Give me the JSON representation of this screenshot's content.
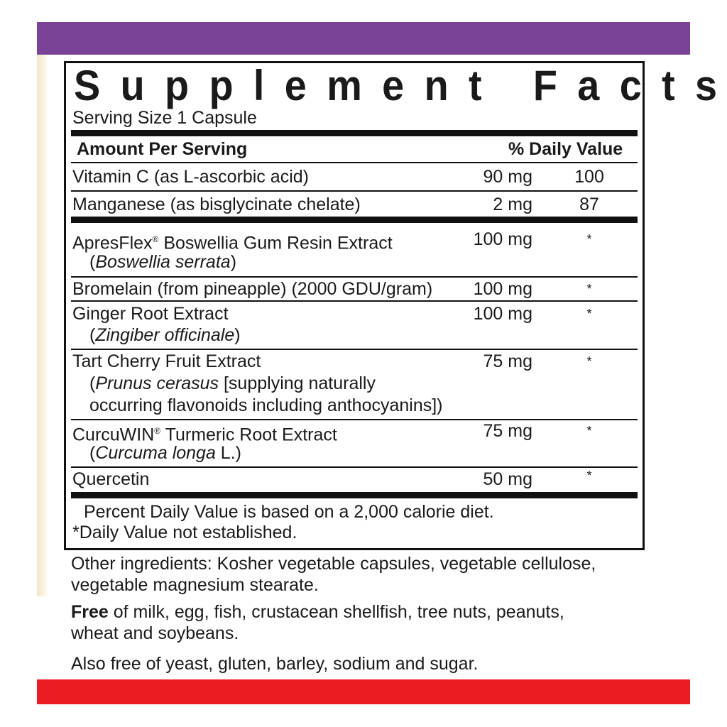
{
  "title": "Supplement Facts",
  "serving_size": "Serving Size 1 Capsule",
  "header": {
    "amount": "Amount Per Serving",
    "dv": "% Daily Value"
  },
  "rows": [
    {
      "name": "Vitamin C (as L-ascorbic acid)",
      "amount": "90 mg",
      "dv": "100"
    },
    {
      "name": "Manganese (as bisglycinate chelate)",
      "amount": "2 mg",
      "dv": "87"
    },
    {
      "name": "ApresFlex",
      "mark": "®",
      "name_rest": " Boswellia Gum Resin Extract",
      "sub_open": "(",
      "sub_italic": "Boswellia serrata",
      "sub_close": ")",
      "amount": "100 mg",
      "dv": "*"
    },
    {
      "name": "Bromelain (from pineapple) (2000 GDU/gram)",
      "amount": "100 mg",
      "dv": "*"
    },
    {
      "name": "Ginger Root Extract",
      "sub_open": "(",
      "sub_italic": "Zingiber officinale",
      "sub_close": ")",
      "amount": "100 mg",
      "dv": "*"
    },
    {
      "name": "Tart Cherry Fruit Extract",
      "sub_open": "(",
      "sub_italic": "Prunus cerasus",
      "sub_close": " [supplying naturally",
      "sub_line2": "occurring flavonoids including anthocyanins])",
      "amount": "75 mg",
      "dv": "*"
    },
    {
      "name": "CurcuWIN",
      "mark": "®",
      "name_rest": " Turmeric Root Extract",
      "sub_open": "(",
      "sub_italic": "Curcuma longa",
      "sub_close": " L.)",
      "amount": "75 mg",
      "dv": "*"
    },
    {
      "name": "Quercetin",
      "amount": "50 mg",
      "dv": "*"
    }
  ],
  "footnotes": [
    "Percent Daily Value is based on a 2,000 calorie diet.",
    "*Daily Value not established."
  ],
  "other_ingredients": [
    "Other ingredients: Kosher vegetable capsules, vegetable cellulose,",
    "vegetable magnesium stearate."
  ],
  "free_of": {
    "bold": "Free",
    "rest": " of milk, egg, fish, crustacean shellfish, tree nuts, peanuts,",
    "line2": "wheat and soybeans."
  },
  "also_free": "Also free of yeast, gluten, barley, sodium and sugar.",
  "colors": {
    "top_band": "#7b4397",
    "bottom_band": "#ec1c24"
  }
}
